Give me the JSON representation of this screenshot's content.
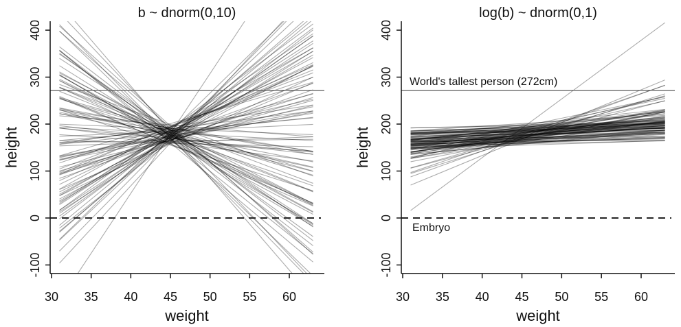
{
  "chart_data": [
    {
      "type": "line",
      "title": "b ~ dnorm(0,10)",
      "xlabel": "weight",
      "ylabel": "height",
      "xlim": [
        30,
        64
      ],
      "ylim": [
        -120,
        420
      ],
      "xticks": [
        "30",
        "35",
        "40",
        "45",
        "50",
        "55",
        "60"
      ],
      "yticks": [
        "-100",
        "0",
        "100",
        "200",
        "300",
        "400"
      ],
      "x_range": [
        31,
        63
      ],
      "x_center": 45,
      "reference_lines": [
        {
          "y": 272,
          "style": "solid",
          "label": ""
        },
        {
          "y": 0,
          "style": "dashed",
          "label": ""
        }
      ],
      "intercepts": [
        178,
        165,
        190,
        172,
        185,
        160,
        195,
        170,
        182,
        176,
        168,
        188,
        174,
        159,
        201,
        181,
        163,
        192,
        177,
        171,
        186,
        155,
        179,
        169,
        194,
        173,
        184,
        162,
        189,
        175,
        180,
        166,
        197,
        170,
        183,
        158,
        191,
        174,
        187,
        164,
        178,
        199,
        167,
        185,
        172,
        161,
        193,
        176,
        182,
        169,
        188,
        157,
        179,
        174,
        196,
        165,
        181,
        170,
        186,
        163,
        177,
        190,
        168,
        184,
        173,
        160,
        198,
        175,
        180,
        166,
        189,
        171,
        183,
        162,
        194,
        176,
        169,
        187,
        174,
        158,
        181,
        192,
        167,
        179,
        185,
        164,
        176,
        190,
        171,
        183,
        160,
        178,
        186,
        169,
        175,
        193,
        166,
        181,
        172,
        188
      ],
      "slopes": [
        -8.2,
        5.1,
        12.4,
        -3.6,
        0.8,
        -14.1,
        7.3,
        -1.9,
        9.6,
        -6.7,
        3.2,
        -11.5,
        15.8,
        -0.4,
        4.9,
        -9.3,
        10.7,
        -2.8,
        6.1,
        -17.2,
        1.5,
        -5.4,
        13.9,
        -7.8,
        2.6,
        8.4,
        -12.9,
        -1.1,
        11.3,
        -4.2,
        25.5,
        -9.9,
        5.7,
        -16.3,
        3.9,
        7.9,
        -3.1,
        14.6,
        -8.7,
        0.2,
        9.1,
        -6.1,
        -13.5,
        4.4,
        12.0,
        -2.2,
        6.8,
        -10.6,
        1.8,
        17.1,
        -4.9,
        -7.3,
        10.2,
        3.5,
        -15.2,
        8.9,
        -0.9,
        5.3,
        -11.0,
        13.2,
        -3.8,
        2.1,
        -8.9,
        16.4,
        -5.8,
        7.1,
        -1.4,
        11.8,
        -12.2,
        4.1,
        -6.4,
        9.8,
        -19.6,
        0.6,
        6.4,
        -9.1,
        14.1,
        -2.5,
        3.0,
        -7.0,
        10.9,
        -14.7,
        5.9,
        -3.3,
        8.1,
        -10.1,
        12.7,
        -0.7,
        2.9,
        -5.1,
        18.3,
        -8.4,
        7.6,
        -1.6,
        -13.0,
        9.4,
        4.7,
        -6.9,
        11.1,
        -17.8
      ]
    },
    {
      "type": "line",
      "title": "log(b) ~ dnorm(0,1)",
      "xlabel": "weight",
      "ylabel": "height",
      "xlim": [
        30,
        64
      ],
      "ylim": [
        -120,
        420
      ],
      "xticks": [
        "30",
        "35",
        "40",
        "45",
        "50",
        "55",
        "60"
      ],
      "yticks": [
        "-100",
        "0",
        "100",
        "200",
        "300",
        "400"
      ],
      "x_range": [
        31,
        63
      ],
      "x_center": 45,
      "reference_lines": [
        {
          "y": 272,
          "style": "solid",
          "label": "World's tallest person (272cm)"
        },
        {
          "y": 0,
          "style": "dashed",
          "label": "Embryo"
        }
      ],
      "intercepts": [
        178,
        165,
        190,
        172,
        185,
        160,
        195,
        170,
        182,
        176,
        168,
        188,
        174,
        159,
        201,
        181,
        163,
        192,
        177,
        171,
        186,
        155,
        179,
        169,
        194,
        173,
        184,
        162,
        189,
        175,
        191,
        166,
        197,
        170,
        183,
        158,
        191,
        174,
        187,
        164,
        178,
        199,
        167,
        185,
        172,
        161,
        193,
        176,
        182,
        169,
        188,
        157,
        179,
        174,
        196,
        165,
        181,
        170,
        186,
        163,
        177,
        190,
        168,
        184,
        173,
        168,
        198,
        175,
        180,
        166,
        189,
        171,
        183,
        162,
        194,
        176,
        169,
        187,
        174,
        158,
        181,
        192,
        167,
        179,
        185,
        164,
        176,
        190,
        171,
        183,
        160,
        178,
        186,
        169,
        175,
        193,
        166,
        181,
        172,
        188
      ],
      "slopes": [
        0.5,
        1.2,
        0.8,
        2.3,
        0.3,
        1.0,
        3.5,
        0.6,
        1.7,
        0.9,
        0.2,
        1.4,
        4.8,
        0.7,
        1.1,
        2.6,
        0.4,
        1.9,
        0.8,
        0.15,
        1.3,
        0.55,
        2.9,
        1.0,
        0.65,
        6.1,
        1.5,
        0.35,
        2.1,
        0.9,
        12.5,
        0.75,
        1.2,
        3.1,
        0.45,
        1.6,
        0.95,
        2.4,
        0.6,
        1.05,
        0.25,
        1.8,
        0.7,
        4.1,
        1.35,
        0.5,
        2.0,
        0.85,
        1.15,
        5.3,
        0.4,
        1.55,
        0.8,
        2.7,
        0.3,
        1.25,
        3.8,
        0.65,
        1.0,
        0.95,
        1.45,
        0.55,
        2.2,
        0.75,
        1.1,
        7.0,
        0.45,
        1.7,
        0.9,
        3.3,
        0.6,
        1.3,
        0.2,
        2.5,
        0.85,
        1.6,
        4.5,
        0.7,
        1.05,
        0.35,
        1.9,
        0.5,
        1.2,
        2.8,
        0.95,
        0.1,
        1.4,
        3.6,
        0.65,
        1.15,
        0.8,
        5.8,
        0.4,
        2.0,
        1.25,
        0.55,
        1.75,
        0.9,
        3.0,
        1.5
      ]
    }
  ]
}
